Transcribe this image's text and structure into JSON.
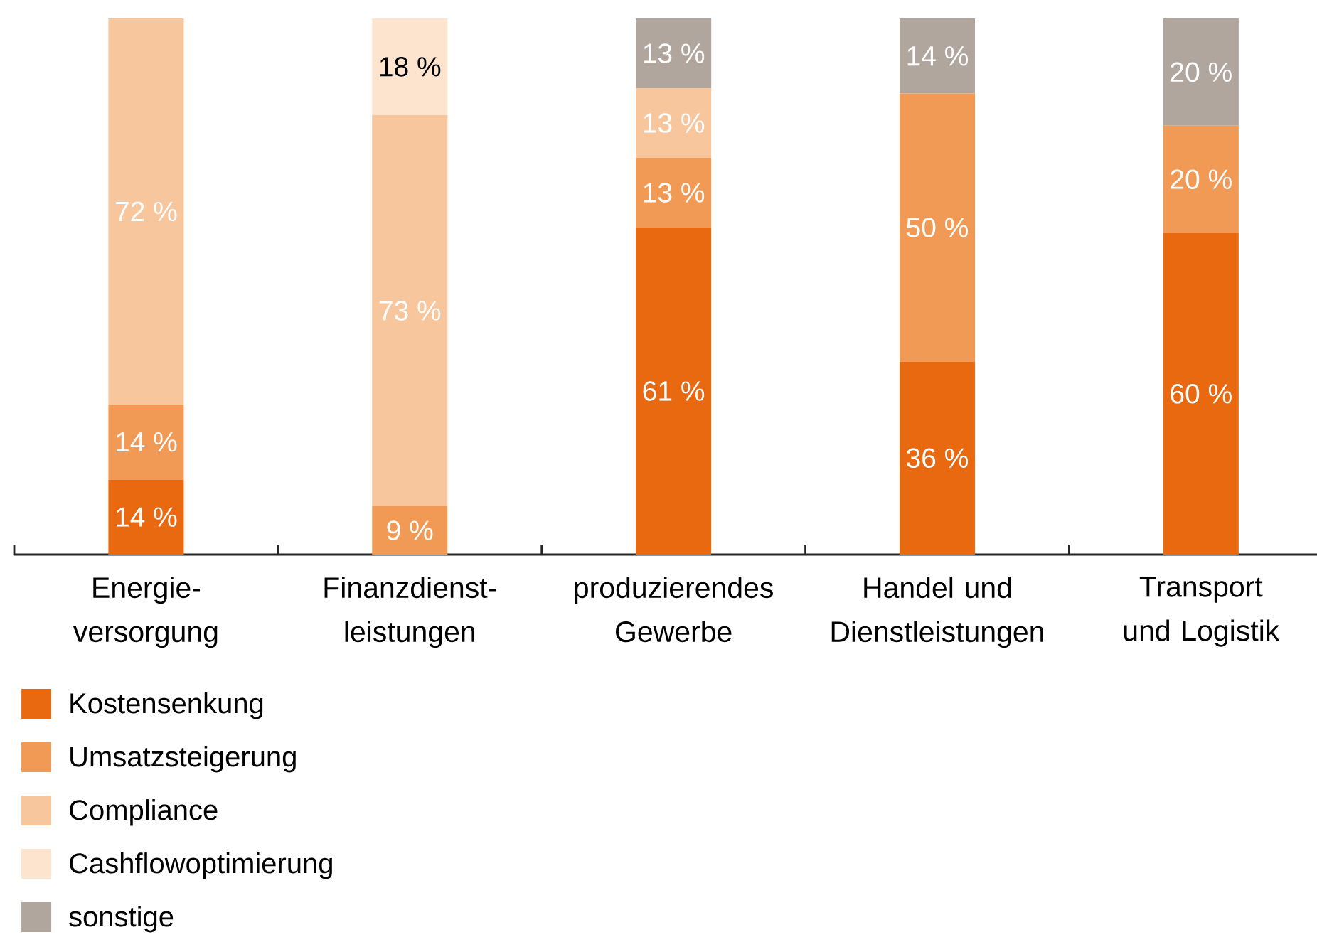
{
  "chart_data": {
    "type": "bar",
    "stacked": true,
    "categories": [
      "Energie-versorgung",
      "Finanzdienst-leistungen",
      "produzierendes Gewerbe",
      "Handel und Dienstleistungen",
      "Transport und Logistik"
    ],
    "tick_labels": "x",
    "legend": "bottom",
    "series": [
      {
        "name": "Kostensenkung",
        "color": "#e8690f",
        "values": [
          14,
          null,
          61,
          36,
          60
        ],
        "value_labels": [
          "14 %",
          null,
          "61 %",
          "36 %",
          "60 %"
        ]
      },
      {
        "name": "Umsatzsteigerung",
        "color": "#f09a56",
        "values": [
          14,
          9,
          13,
          50,
          20
        ],
        "value_labels": [
          "14 %",
          "9 %",
          "13 %",
          "50 %",
          "20 %"
        ]
      },
      {
        "name": "Compliance",
        "color": "#f7c69d",
        "values": [
          72,
          73,
          13,
          null,
          null
        ],
        "value_labels": [
          "72 %",
          "73 %",
          "13 %",
          null,
          null
        ]
      },
      {
        "name": "Cashflowoptimierung",
        "color": "#fde4cf",
        "values": [
          null,
          18,
          null,
          null,
          null
        ],
        "value_labels": [
          null,
          "18 %",
          null,
          null,
          null
        ]
      },
      {
        "name": "sonstige",
        "color": "#b0a69d",
        "values": [
          null,
          null,
          13,
          14,
          20
        ],
        "value_labels": [
          null,
          null,
          "13 %",
          "14 %",
          "20 %"
        ]
      }
    ]
  }
}
